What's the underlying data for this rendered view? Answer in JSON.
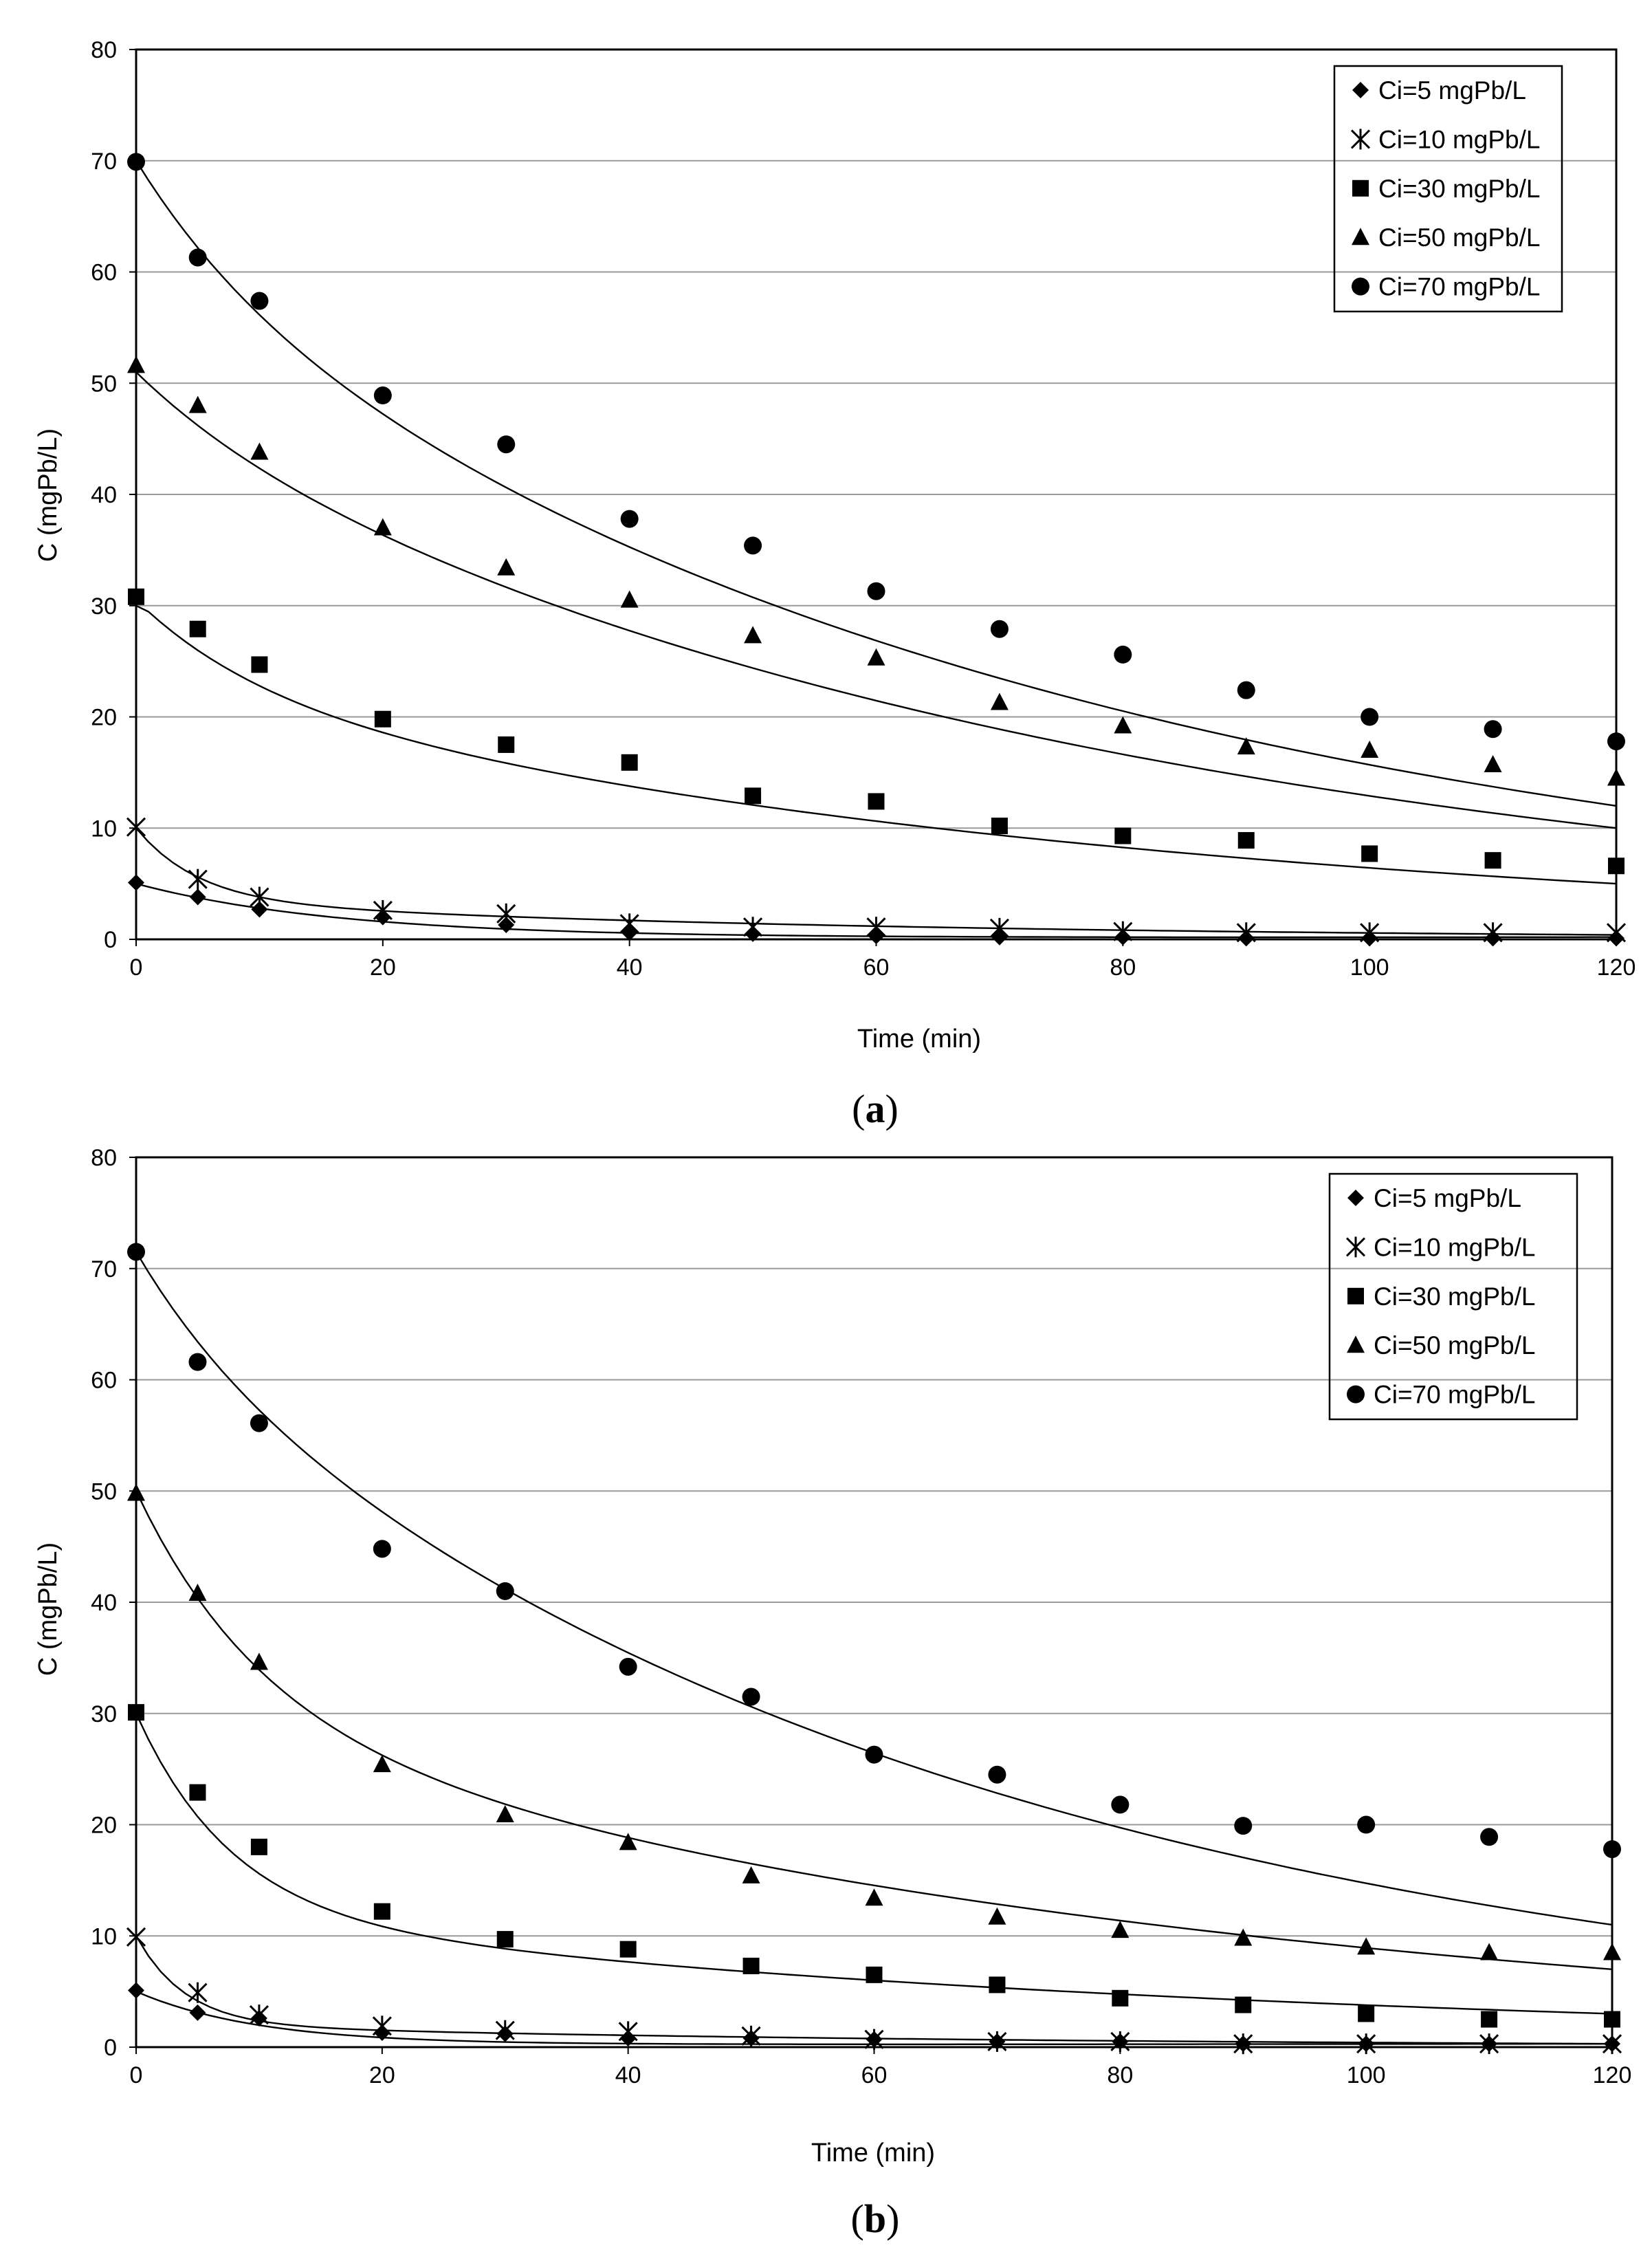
{
  "colors": {
    "background": "#ffffff",
    "grid": "#9a9a9a",
    "ink": "#000000"
  },
  "chart_data": [
    {
      "type": "scatter",
      "panel_label": "a",
      "xlabel": "Time (min)",
      "ylabel": "C (mgPb/L)",
      "xlim": [
        0,
        120
      ],
      "ylim": [
        0,
        80
      ],
      "xticks": [
        0,
        20,
        40,
        60,
        80,
        100,
        120
      ],
      "yticks": [
        0,
        10,
        20,
        30,
        40,
        50,
        60,
        70,
        80
      ],
      "grid": true,
      "legend_position": "top-right",
      "x": [
        0,
        5,
        10,
        20,
        30,
        40,
        50,
        60,
        70,
        80,
        90,
        100,
        110,
        120
      ],
      "series": [
        {
          "name": "Ci=5 mgPb/L",
          "marker": "diamond",
          "values": [
            5.1,
            3.8,
            2.7,
            2.0,
            1.3,
            0.6,
            0.5,
            0.3,
            0.2,
            0.2,
            0.1,
            0.1,
            0.1,
            0.1
          ],
          "fit": {
            "c0": 5,
            "A": 4.9,
            "k": 0.06,
            "B": 0.1,
            "floor": 0.2
          }
        },
        {
          "name": "Ci=10 mgPb/L",
          "marker": "star",
          "values": [
            10.1,
            5.4,
            3.8,
            2.6,
            2.3,
            1.4,
            1.1,
            1.1,
            1.0,
            0.7,
            0.6,
            0.6,
            0.6,
            0.6
          ],
          "fit": {
            "c0": 10,
            "A": 6.5,
            "k": 0.2,
            "B": 3.5,
            "floor": 0.4
          }
        },
        {
          "name": "Ci=30 mgPb/L",
          "marker": "square",
          "values": [
            30.8,
            27.9,
            24.7,
            19.8,
            17.5,
            15.9,
            12.9,
            12.4,
            10.2,
            9.3,
            8.9,
            7.7,
            7.1,
            6.6
          ],
          "fit": {
            "c0": 30,
            "A": 8,
            "k": 0.1,
            "B": 22.5,
            "floor": 5
          }
        },
        {
          "name": "Ci=50 mgPb/L",
          "marker": "triangle",
          "values": [
            51.6,
            48.0,
            43.8,
            37.0,
            33.4,
            30.5,
            27.3,
            25.3,
            21.3,
            19.2,
            17.3,
            17.0,
            15.7,
            14.5
          ],
          "fit": {
            "c0": 51,
            "A": 5,
            "k": 0.1,
            "B": 46,
            "floor": 10
          }
        },
        {
          "name": "Ci=70 mgPb/L",
          "marker": "circle",
          "values": [
            69.9,
            61.3,
            57.4,
            48.9,
            44.5,
            37.8,
            35.4,
            31.3,
            27.9,
            25.6,
            22.4,
            20.0,
            18.9,
            17.8
          ],
          "fit": {
            "c0": 70,
            "A": 10,
            "k": 0.1,
            "B": 60,
            "floor": 12
          }
        }
      ]
    },
    {
      "type": "scatter",
      "panel_label": "b",
      "xlabel": "Time (min)",
      "ylabel": "C (mgPb/L)",
      "xlim": [
        0,
        120
      ],
      "ylim": [
        0,
        80
      ],
      "xticks": [
        0,
        20,
        40,
        60,
        80,
        100,
        120
      ],
      "yticks": [
        0,
        10,
        20,
        30,
        40,
        50,
        60,
        70,
        80
      ],
      "grid": true,
      "legend_position": "top-right",
      "x": [
        0,
        5,
        10,
        20,
        30,
        40,
        50,
        60,
        70,
        80,
        90,
        100,
        110,
        120
      ],
      "series": [
        {
          "name": "Ci=5 mgPb/L",
          "marker": "diamond",
          "values": [
            5.1,
            3.1,
            2.6,
            1.3,
            1.2,
            0.8,
            0.8,
            0.7,
            0.5,
            0.5,
            0.3,
            0.3,
            0.3,
            0.3
          ],
          "fit": {
            "c0": 5,
            "A": 4.8,
            "k": 0.1,
            "B": 0.2,
            "floor": 0.3
          }
        },
        {
          "name": "Ci=10 mgPb/L",
          "marker": "star",
          "values": [
            9.9,
            4.9,
            2.9,
            1.9,
            1.5,
            1.4,
            1.0,
            0.7,
            0.5,
            0.5,
            0.3,
            0.3,
            0.3,
            0.3
          ],
          "fit": {
            "c0": 10,
            "A": 8,
            "k": 0.25,
            "B": 2,
            "floor": 0.3
          }
        },
        {
          "name": "Ci=30 mgPb/L",
          "marker": "square",
          "values": [
            30.1,
            22.9,
            18.0,
            12.2,
            9.7,
            8.8,
            7.3,
            6.5,
            5.6,
            4.4,
            3.8,
            3.0,
            2.5,
            2.5
          ],
          "fit": {
            "c0": 30,
            "A": 18,
            "k": 0.13,
            "B": 12,
            "floor": 3
          }
        },
        {
          "name": "Ci=50 mgPb/L",
          "marker": "triangle",
          "values": [
            49.8,
            40.8,
            34.6,
            25.4,
            20.9,
            18.4,
            15.4,
            13.4,
            11.7,
            10.5,
            9.8,
            9.0,
            8.5,
            8.5
          ],
          "fit": {
            "c0": 50,
            "A": 20,
            "k": 0.1,
            "B": 30,
            "floor": 7
          }
        },
        {
          "name": "Ci=70 mgPb/L",
          "marker": "circle",
          "values": [
            71.5,
            61.6,
            56.1,
            44.8,
            41.0,
            34.2,
            31.5,
            26.3,
            24.5,
            21.8,
            19.9,
            20.0,
            18.9,
            17.8
          ],
          "fit": {
            "c0": 71.5,
            "A": 8,
            "k": 0.12,
            "B": 63.5,
            "floor": 11
          }
        }
      ]
    }
  ]
}
